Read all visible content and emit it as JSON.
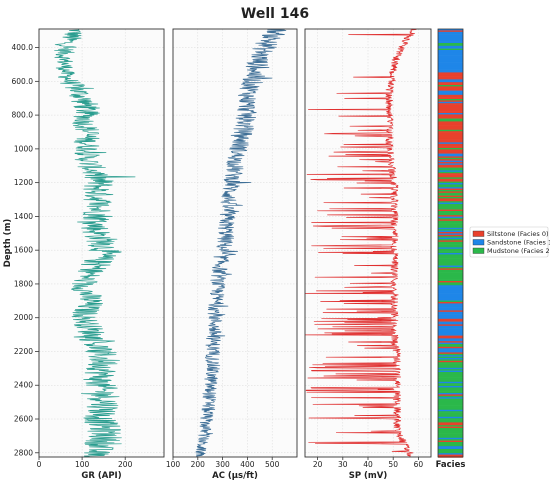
{
  "chart_data": {
    "type": "line",
    "title": "Well 146",
    "ylabel": "Depth (m)",
    "y_axis": {
      "inverted": true,
      "ylim": [
        2825,
        290
      ],
      "ticks": [
        400,
        600,
        800,
        1000,
        1200,
        1400,
        1600,
        1800,
        2000,
        2200,
        2400,
        2600,
        2800
      ],
      "tick_labels": [
        "400.0",
        "600.0",
        "800.0",
        "1000",
        "1200",
        "1400",
        "1600",
        "1800",
        "2000",
        "2200",
        "2400",
        "2600",
        "2800"
      ]
    },
    "tracks": [
      {
        "name": "GR",
        "xlabel": "GR (API)",
        "xlim": [
          0,
          290
        ],
        "xticks": [
          0,
          100,
          200
        ],
        "color": "#2a9d8f",
        "depth": [
          300,
          350,
          400,
          450,
          500,
          550,
          600,
          650,
          700,
          750,
          800,
          850,
          900,
          950,
          1000,
          1050,
          1100,
          1150,
          1200,
          1250,
          1300,
          1350,
          1400,
          1450,
          1500,
          1550,
          1600,
          1650,
          1700,
          1750,
          1800,
          1850,
          1900,
          1950,
          2000,
          2050,
          2100,
          2150,
          2200,
          2250,
          2300,
          2350,
          2400,
          2450,
          2500,
          2550,
          2600,
          2650,
          2700,
          2750,
          2800
        ],
        "values": [
          85,
          70,
          60,
          58,
          60,
          62,
          70,
          90,
          100,
          110,
          110,
          105,
          115,
          110,
          115,
          110,
          120,
          130,
          140,
          135,
          140,
          135,
          140,
          130,
          135,
          150,
          155,
          140,
          130,
          115,
          100,
          110,
          120,
          110,
          105,
          115,
          125,
          130,
          140,
          150,
          150,
          140,
          140,
          150,
          155,
          150,
          140,
          150,
          155,
          145,
          130
        ],
        "spread": [
          22,
          28,
          25,
          22,
          22,
          20,
          25,
          30,
          30,
          32,
          30,
          28,
          32,
          30,
          30,
          30,
          32,
          35,
          38,
          36,
          38,
          36,
          38,
          34,
          36,
          40,
          40,
          36,
          34,
          30,
          30,
          32,
          34,
          32,
          30,
          32,
          34,
          35,
          38,
          40,
          40,
          38,
          38,
          40,
          42,
          40,
          38,
          40,
          42,
          40,
          35
        ]
      },
      {
        "name": "AC",
        "xlabel": "AC (μs/ft)",
        "xlim": [
          100,
          600
        ],
        "xticks": [
          100,
          200,
          300,
          400,
          500
        ],
        "color": "#3d6e96",
        "depth": [
          300,
          350,
          400,
          450,
          500,
          550,
          600,
          650,
          700,
          750,
          800,
          850,
          900,
          950,
          1000,
          1050,
          1100,
          1150,
          1200,
          1250,
          1300,
          1350,
          1400,
          1450,
          1500,
          1550,
          1600,
          1650,
          1700,
          1750,
          1800,
          1850,
          1900,
          1950,
          2000,
          2050,
          2100,
          2150,
          2200,
          2250,
          2300,
          2350,
          2400,
          2450,
          2500,
          2550,
          2600,
          2650,
          2700,
          2750,
          2800
        ],
        "values": [
          520,
          490,
          470,
          450,
          440,
          430,
          420,
          410,
          400,
          400,
          395,
          390,
          385,
          375,
          365,
          355,
          350,
          345,
          340,
          330,
          325,
          320,
          318,
          315,
          315,
          310,
          300,
          295,
          290,
          285,
          280,
          278,
          275,
          272,
          270,
          268,
          265,
          262,
          262,
          260,
          258,
          255,
          250,
          248,
          245,
          240,
          235,
          230,
          225,
          215,
          210
        ],
        "spread": [
          40,
          50,
          48,
          45,
          45,
          44,
          44,
          42,
          40,
          40,
          40,
          40,
          38,
          38,
          38,
          36,
          36,
          36,
          36,
          35,
          35,
          35,
          34,
          34,
          34,
          34,
          32,
          32,
          32,
          32,
          30,
          30,
          30,
          30,
          30,
          30,
          30,
          30,
          30,
          30,
          30,
          28,
          28,
          28,
          28,
          28,
          26,
          26,
          24,
          22,
          20
        ]
      },
      {
        "name": "SP",
        "xlabel": "SP (mV)",
        "xlim": [
          15,
          65
        ],
        "xticks": [
          20,
          30,
          40,
          50,
          60
        ],
        "color": "#e03030",
        "depth": [
          300,
          350,
          400,
          450,
          500,
          550,
          600,
          650,
          700,
          750,
          800,
          850,
          900,
          950,
          1000,
          1050,
          1100,
          1150,
          1200,
          1250,
          1300,
          1350,
          1400,
          1450,
          1500,
          1550,
          1600,
          1650,
          1700,
          1750,
          1800,
          1850,
          1900,
          1950,
          2000,
          2050,
          2100,
          2150,
          2200,
          2250,
          2300,
          2350,
          2400,
          2450,
          2500,
          2550,
          2600,
          2650,
          2700,
          2750,
          2800
        ],
        "baseline": [
          60,
          57,
          55,
          53,
          52,
          51,
          51,
          50,
          50,
          50,
          50,
          50,
          50,
          50,
          50,
          51,
          51,
          51,
          52,
          52,
          52,
          52,
          52,
          52,
          52,
          52,
          52,
          52,
          52,
          52,
          52,
          52,
          52,
          52,
          52,
          52,
          52,
          52,
          53,
          53,
          53,
          53,
          53,
          53,
          53,
          53,
          53,
          53,
          54,
          56,
          58
        ],
        "deflection_min": 15,
        "spread": [
          3,
          3,
          3,
          3,
          3,
          3,
          3,
          3,
          3,
          3,
          3,
          3,
          3,
          3,
          3,
          3,
          3,
          3,
          3,
          3,
          3,
          3,
          3,
          3,
          3,
          3,
          3,
          3,
          3,
          3,
          3,
          3,
          3,
          3,
          3,
          3,
          3,
          3,
          3,
          3,
          3,
          3,
          3,
          3,
          3,
          3,
          3,
          3,
          3,
          3,
          3
        ]
      }
    ],
    "facies_track": {
      "xlabel": "Facies",
      "sections": [
        {
          "from": 290,
          "to": 560,
          "dominant": 1,
          "mix": 0.25
        },
        {
          "from": 560,
          "to": 1200,
          "dominant": 0,
          "mix": 0.35
        },
        {
          "from": 1200,
          "to": 1450,
          "dominant": 2,
          "mix": 0.4
        },
        {
          "from": 1450,
          "to": 1800,
          "dominant": 2,
          "mix": 0.45
        },
        {
          "from": 1800,
          "to": 2150,
          "dominant": 1,
          "mix": 0.45
        },
        {
          "from": 2150,
          "to": 2825,
          "dominant": 2,
          "mix": 0.45
        }
      ]
    },
    "legend": {
      "placement": "right",
      "entries": [
        {
          "label": "Siltstone (Facies 0)",
          "color": "#e8412c"
        },
        {
          "label": "Sandstone (Facies 1)",
          "color": "#1f86e8"
        },
        {
          "label": "Mudstone (Facies 2)",
          "color": "#2bb84a"
        }
      ]
    },
    "grid": true
  }
}
